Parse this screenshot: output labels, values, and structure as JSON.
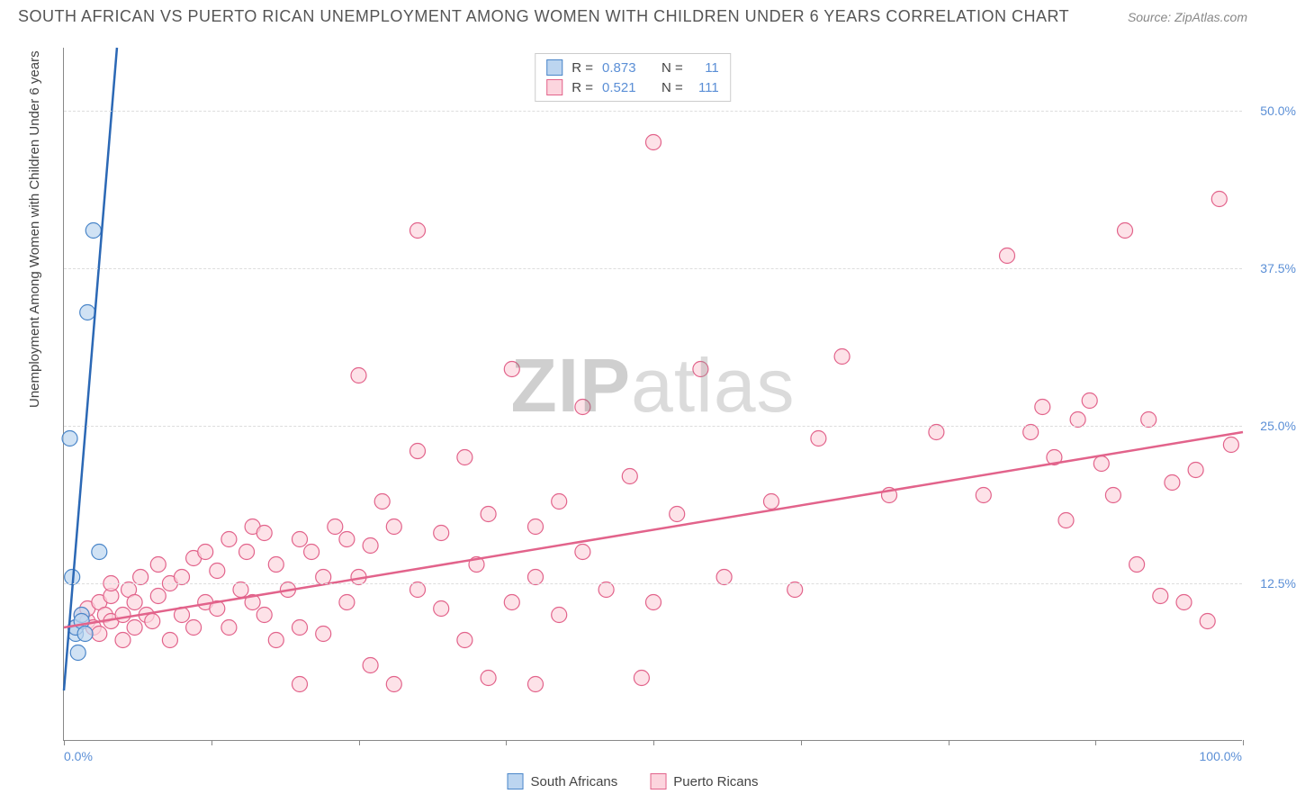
{
  "title": "SOUTH AFRICAN VS PUERTO RICAN UNEMPLOYMENT AMONG WOMEN WITH CHILDREN UNDER 6 YEARS CORRELATION CHART",
  "source": "Source: ZipAtlas.com",
  "y_axis_title": "Unemployment Among Women with Children Under 6 years",
  "watermark_bold": "ZIP",
  "watermark_rest": "atlas",
  "chart": {
    "type": "scatter",
    "xlim": [
      0,
      100
    ],
    "ylim": [
      0,
      55
    ],
    "x_tick_positions": [
      0,
      12.5,
      25,
      37.5,
      50,
      62.5,
      75,
      87.5,
      100
    ],
    "y_gridlines": [
      12.5,
      25,
      37.5,
      50
    ],
    "y_tick_labels": [
      "12.5%",
      "25.0%",
      "37.5%",
      "50.0%"
    ],
    "x_label_start": "0.0%",
    "x_label_end": "100.0%",
    "background_color": "#ffffff",
    "grid_color": "#dddddd",
    "axis_color": "#888888",
    "label_color": "#5b8fd6",
    "marker_radius": 8.5,
    "marker_stroke_width": 1.2,
    "trend_line_width": 2.5,
    "series": [
      {
        "name": "South Africans",
        "color_fill": "#bcd5f0",
        "color_stroke": "#4a86c9",
        "trend_color": "#2b68b5",
        "r_value": "0.873",
        "n_value": "11",
        "trend": {
          "x1": 0,
          "y1": 4,
          "x2": 4.5,
          "y2": 55,
          "dash_extend": true
        },
        "points": [
          [
            0.5,
            24.0
          ],
          [
            0.7,
            13.0
          ],
          [
            1.0,
            8.5
          ],
          [
            1.2,
            7.0
          ],
          [
            1.0,
            9.0
          ],
          [
            1.5,
            10.0
          ],
          [
            1.5,
            9.5
          ],
          [
            2.0,
            34.0
          ],
          [
            2.5,
            40.5
          ],
          [
            3.0,
            15.0
          ],
          [
            1.8,
            8.5
          ]
        ]
      },
      {
        "name": "Puerto Ricans",
        "color_fill": "#fcd5de",
        "color_stroke": "#e2638b",
        "trend_color": "#e2638b",
        "r_value": "0.521",
        "n_value": "111",
        "trend": {
          "x1": 0,
          "y1": 9,
          "x2": 100,
          "y2": 24.5,
          "dash_extend": false
        },
        "points": [
          [
            1,
            9
          ],
          [
            1.5,
            10
          ],
          [
            2,
            9.5
          ],
          [
            2,
            10.5
          ],
          [
            2.5,
            9
          ],
          [
            3,
            8.5
          ],
          [
            3,
            11
          ],
          [
            3.5,
            10
          ],
          [
            4,
            9.5
          ],
          [
            4,
            11.5
          ],
          [
            4,
            12.5
          ],
          [
            5,
            8
          ],
          [
            5,
            10
          ],
          [
            5.5,
            12
          ],
          [
            6,
            9
          ],
          [
            6,
            11
          ],
          [
            6.5,
            13
          ],
          [
            7,
            10
          ],
          [
            7.5,
            9.5
          ],
          [
            8,
            11.5
          ],
          [
            8,
            14
          ],
          [
            9,
            8
          ],
          [
            9,
            12.5
          ],
          [
            10,
            10
          ],
          [
            10,
            13
          ],
          [
            11,
            9
          ],
          [
            11,
            14.5
          ],
          [
            12,
            11
          ],
          [
            12,
            15
          ],
          [
            13,
            10.5
          ],
          [
            13,
            13.5
          ],
          [
            14,
            16
          ],
          [
            14,
            9
          ],
          [
            15,
            12
          ],
          [
            15.5,
            15
          ],
          [
            16,
            11
          ],
          [
            16,
            17
          ],
          [
            17,
            10
          ],
          [
            17,
            16.5
          ],
          [
            18,
            8
          ],
          [
            18,
            14
          ],
          [
            19,
            12
          ],
          [
            20,
            16
          ],
          [
            20,
            9
          ],
          [
            20,
            4.5
          ],
          [
            21,
            15
          ],
          [
            22,
            13
          ],
          [
            22,
            8.5
          ],
          [
            23,
            17
          ],
          [
            24,
            11
          ],
          [
            24,
            16
          ],
          [
            25,
            13
          ],
          [
            25,
            29
          ],
          [
            26,
            6
          ],
          [
            26,
            15.5
          ],
          [
            27,
            19
          ],
          [
            28,
            17
          ],
          [
            28,
            4.5
          ],
          [
            30,
            23
          ],
          [
            30,
            12
          ],
          [
            30,
            40.5
          ],
          [
            32,
            10.5
          ],
          [
            32,
            16.5
          ],
          [
            34,
            8
          ],
          [
            34,
            22.5
          ],
          [
            35,
            14
          ],
          [
            36,
            5
          ],
          [
            36,
            18
          ],
          [
            38,
            11
          ],
          [
            38,
            29.5
          ],
          [
            40,
            13
          ],
          [
            40,
            17
          ],
          [
            40,
            4.5
          ],
          [
            42,
            19
          ],
          [
            42,
            10
          ],
          [
            44,
            15
          ],
          [
            44,
            26.5
          ],
          [
            46,
            12
          ],
          [
            48,
            21
          ],
          [
            49,
            5
          ],
          [
            50,
            47.5
          ],
          [
            50,
            11
          ],
          [
            52,
            18
          ],
          [
            54,
            29.5
          ],
          [
            56,
            13
          ],
          [
            60,
            19
          ],
          [
            62,
            12
          ],
          [
            64,
            24
          ],
          [
            66,
            30.5
          ],
          [
            70,
            19.5
          ],
          [
            74,
            24.5
          ],
          [
            78,
            19.5
          ],
          [
            80,
            38.5
          ],
          [
            82,
            24.5
          ],
          [
            83,
            26.5
          ],
          [
            84,
            22.5
          ],
          [
            85,
            17.5
          ],
          [
            86,
            25.5
          ],
          [
            87,
            27
          ],
          [
            88,
            22
          ],
          [
            89,
            19.5
          ],
          [
            90,
            40.5
          ],
          [
            91,
            14
          ],
          [
            92,
            25.5
          ],
          [
            93,
            11.5
          ],
          [
            94,
            20.5
          ],
          [
            95,
            11
          ],
          [
            96,
            21.5
          ],
          [
            97,
            9.5
          ],
          [
            98,
            43
          ],
          [
            99,
            23.5
          ]
        ]
      }
    ]
  },
  "legend_bottom": [
    {
      "label": "South Africans",
      "fill": "#bcd5f0",
      "stroke": "#4a86c9"
    },
    {
      "label": "Puerto Ricans",
      "fill": "#fcd5de",
      "stroke": "#e2638b"
    }
  ]
}
